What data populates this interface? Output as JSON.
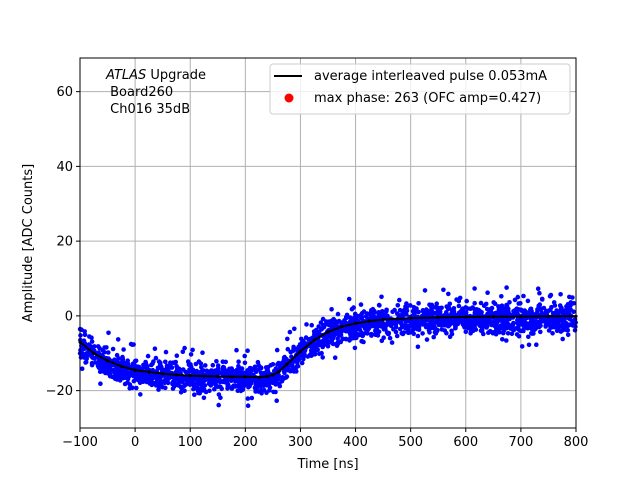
{
  "chart_data": {
    "type": "scatter",
    "xlabel": "Time [ns]",
    "ylabel": "Amplitude [ADC Counts]",
    "xlim": [
      -100,
      800
    ],
    "ylim": [
      -30,
      69
    ],
    "xticks": [
      -100,
      0,
      100,
      200,
      300,
      400,
      500,
      600,
      700,
      800
    ],
    "yticks": [
      -20,
      0,
      20,
      40,
      60
    ],
    "grid": true,
    "legend_position": "top-right",
    "annotation": {
      "line1_italic": "ATLAS",
      "line1_rest": " Upgrade",
      "line2": " Board260",
      "line3": " Ch016 35dB"
    },
    "series": [
      {
        "name": "average interleaved pulse 0.053mA",
        "kind": "line",
        "color": "#000000",
        "x": [
          -100,
          -75,
          -50,
          -25,
          0,
          25,
          50,
          75,
          100,
          125,
          150,
          175,
          200,
          225,
          240,
          250,
          260,
          275,
          300,
          325,
          350,
          375,
          400,
          425,
          450,
          475,
          500,
          550,
          600,
          650,
          700,
          750,
          800
        ],
        "y": [
          -7,
          -10,
          -12,
          -13.5,
          -14.5,
          -15,
          -15.5,
          -15.8,
          -16,
          -16.1,
          -16.2,
          -16.3,
          -16.3,
          -16.4,
          -16.2,
          -15.8,
          -15,
          -13,
          -9.5,
          -6.5,
          -4.3,
          -2.9,
          -2,
          -1.4,
          -1.0,
          -0.8,
          -0.6,
          -0.4,
          -0.3,
          -0.2,
          -0.2,
          -0.1,
          -0.1
        ]
      },
      {
        "name": "samples",
        "kind": "scatter",
        "color": "#0000ff",
        "spread_up": 5,
        "spread_down": 6,
        "outlier_spread": 8
      },
      {
        "name": "max phase: 263 (OFC amp=0.427)",
        "kind": "marker",
        "color": "#ff0000"
      }
    ]
  }
}
